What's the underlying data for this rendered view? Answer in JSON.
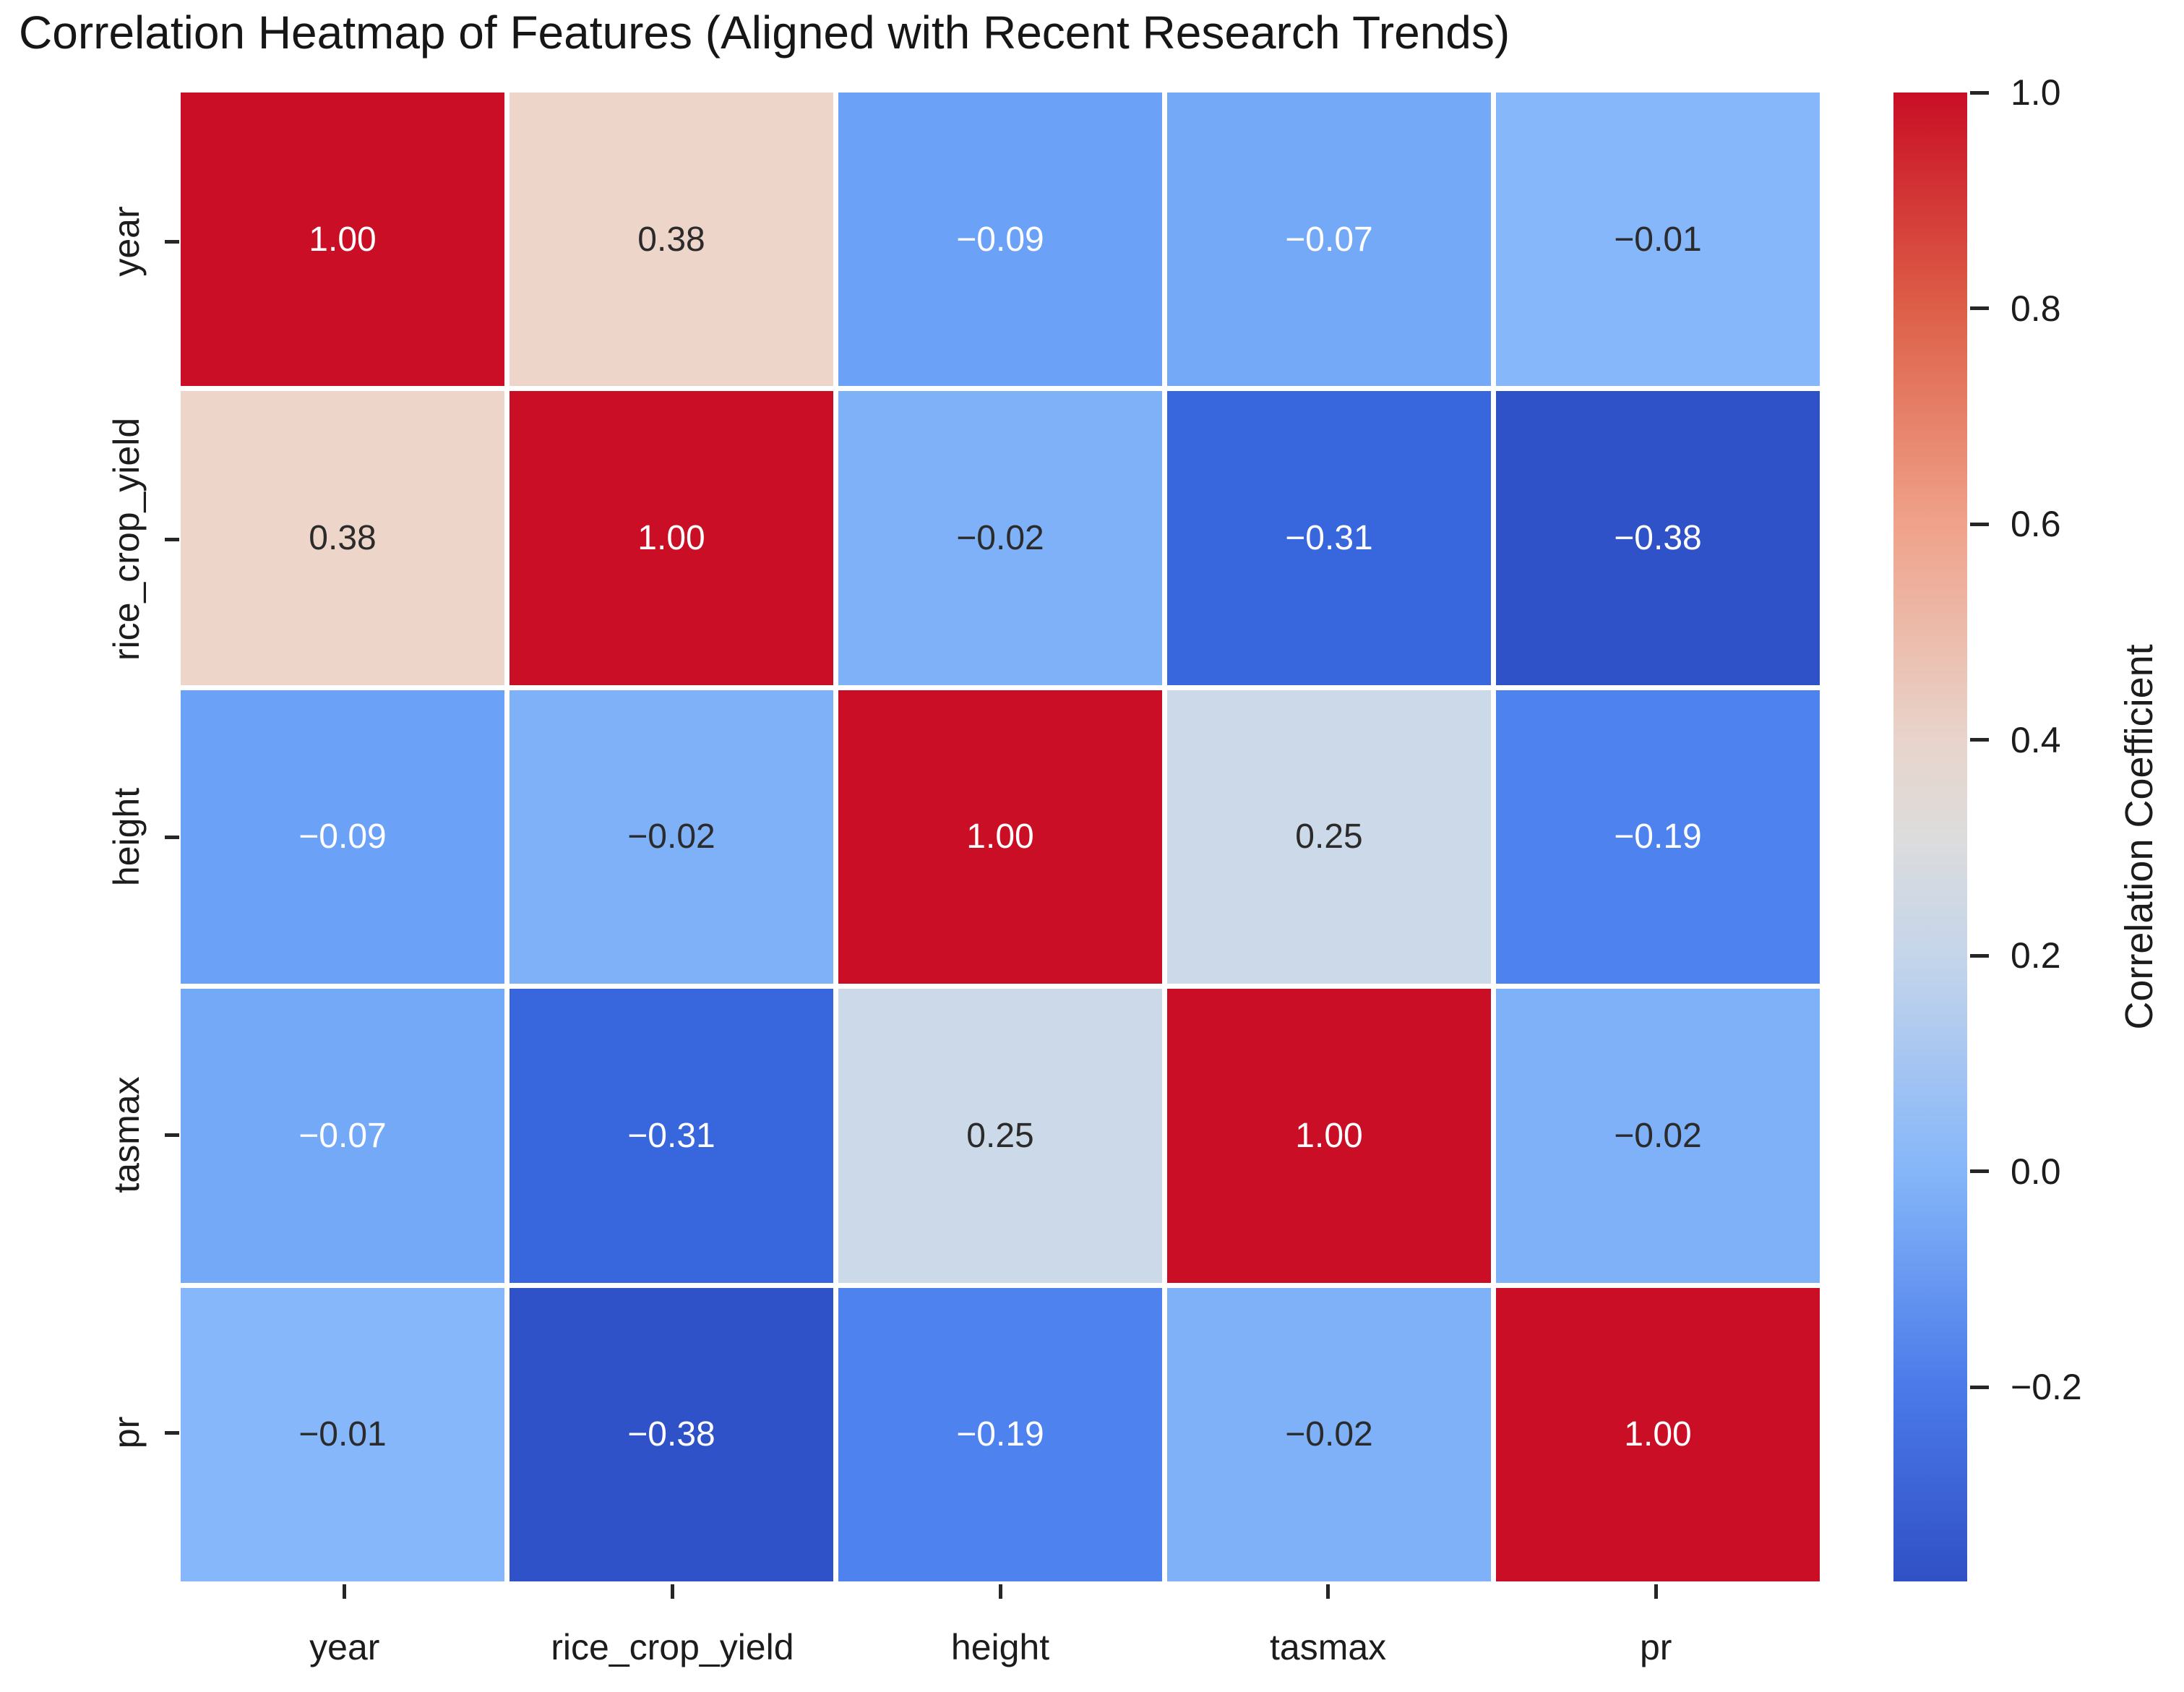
{
  "title": "Correlation Heatmap of Features (Aligned with Recent Research Trends)",
  "chart_data": {
    "type": "heatmap",
    "title": "Correlation Heatmap of Features (Aligned with Recent Research Trends)",
    "categories": [
      "year",
      "rice_crop_yield",
      "height",
      "tasmax",
      "pr"
    ],
    "x_ticklabels": [
      "year",
      "rice_crop_yield",
      "height",
      "tasmax",
      "pr"
    ],
    "y_ticklabels": [
      "year",
      "rice_crop_yield",
      "height",
      "tasmax",
      "pr"
    ],
    "matrix": [
      [
        1.0,
        0.38,
        -0.09,
        -0.07,
        -0.01
      ],
      [
        0.38,
        1.0,
        -0.02,
        -0.31,
        -0.38
      ],
      [
        -0.09,
        -0.02,
        1.0,
        0.25,
        -0.19
      ],
      [
        -0.07,
        -0.31,
        0.25,
        1.0,
        -0.02
      ],
      [
        -0.01,
        -0.38,
        -0.19,
        -0.02,
        1.0
      ]
    ],
    "annotations_decimals": 2,
    "colorbar_label": "Correlation Coefficient",
    "colorbar_tick_values": [
      1.0,
      0.8,
      0.6,
      0.4,
      0.2,
      0.0,
      -0.2
    ],
    "colorbar_tick_labels": [
      "1.0",
      "0.8",
      "0.6",
      "0.4",
      "0.2",
      "0.0",
      "−0.2"
    ],
    "vmin": -0.38,
    "vmax": 1.0,
    "colormap": "coolwarm",
    "grid": false,
    "legend_position": "right-colorbar"
  },
  "colors": {
    "background": "#ffffff",
    "title_text": "#161616",
    "tick_text": "#1c1c1c",
    "annotation_dark_text": "#2b2b2b",
    "annotation_light_text": "#ffffff",
    "cell_gap": "#ffffff",
    "value_colors": {
      "1.00": "#c90e25",
      "0.38": "#eed5c9",
      "0.25": "#ccd9e8",
      "-0.01": "#86b7fa",
      "-0.02": "#7fb1f9",
      "-0.07": "#74a9f8",
      "-0.09": "#6ba2f7",
      "-0.19": "#4d82ef",
      "-0.31": "#3866dc",
      "-0.38": "#3052c8"
    },
    "white_text_values": [
      "1.00",
      "-0.07",
      "-0.09",
      "-0.19",
      "-0.31",
      "-0.38"
    ]
  }
}
